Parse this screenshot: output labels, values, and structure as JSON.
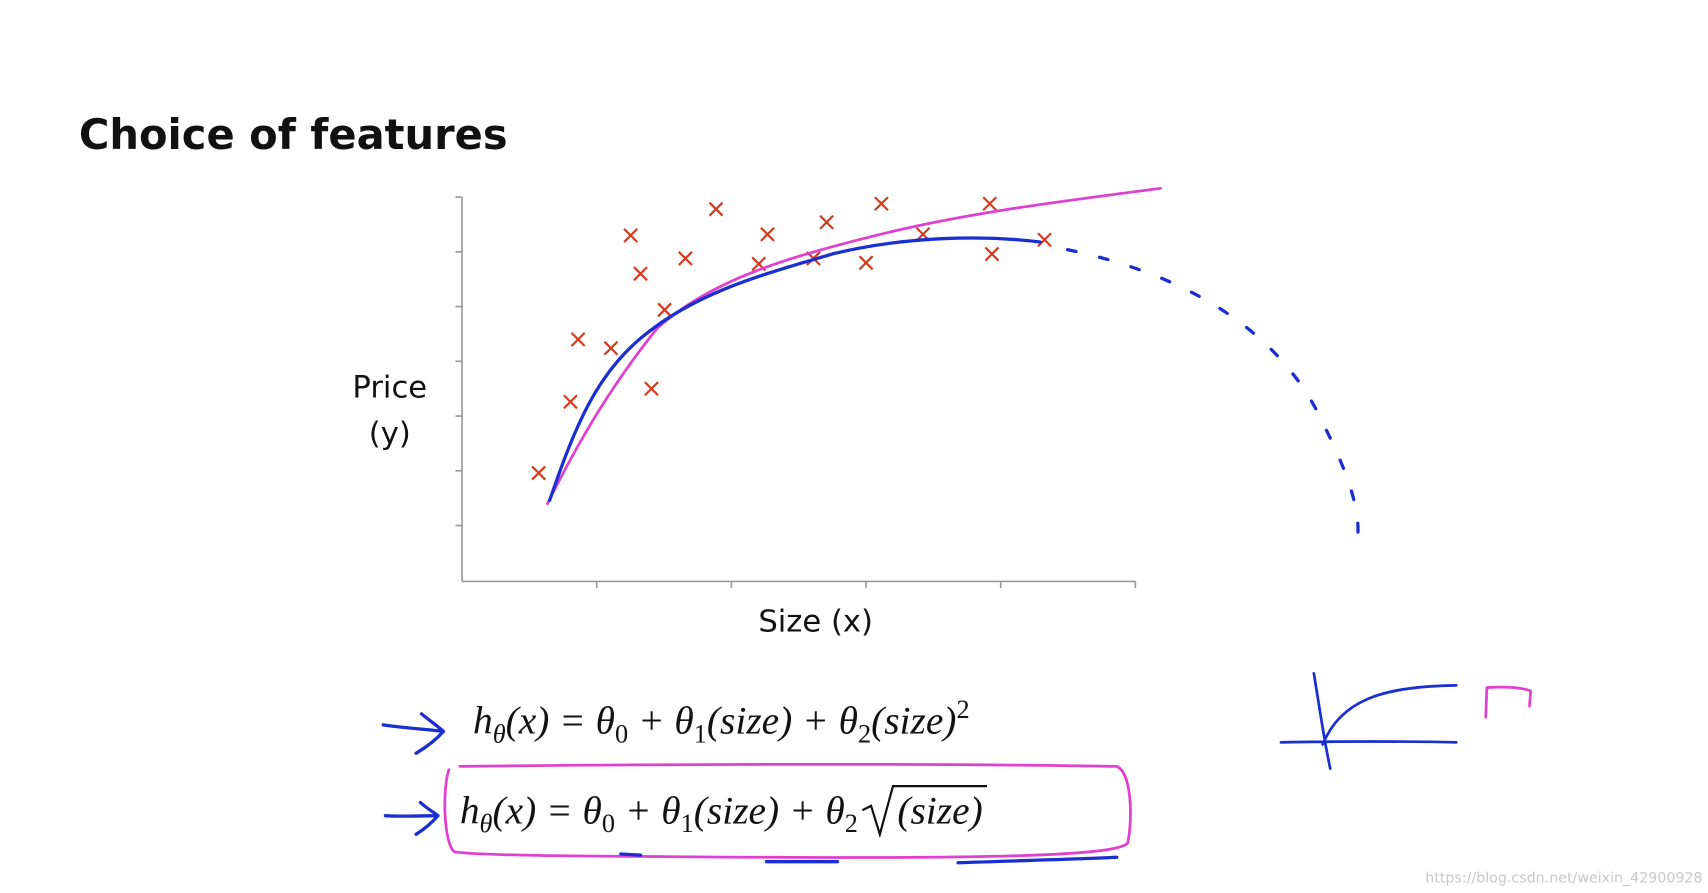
{
  "title": "Choice of features",
  "y_label": [
    "Price",
    "(y)"
  ],
  "x_label": "Size (x)",
  "formulas": [
    [
      "h",
      "θ",
      "(x) = θ",
      "0",
      " + θ",
      "1",
      "(size) + θ",
      "2",
      "(size)",
      "2"
    ],
    [
      "h",
      "θ",
      "(x) = θ",
      "0",
      " + θ",
      "1",
      "(size) + θ",
      "2",
      "(size)"
    ]
  ],
  "watermark": "https://blog.csdn.net/weixin_42900928"
}
